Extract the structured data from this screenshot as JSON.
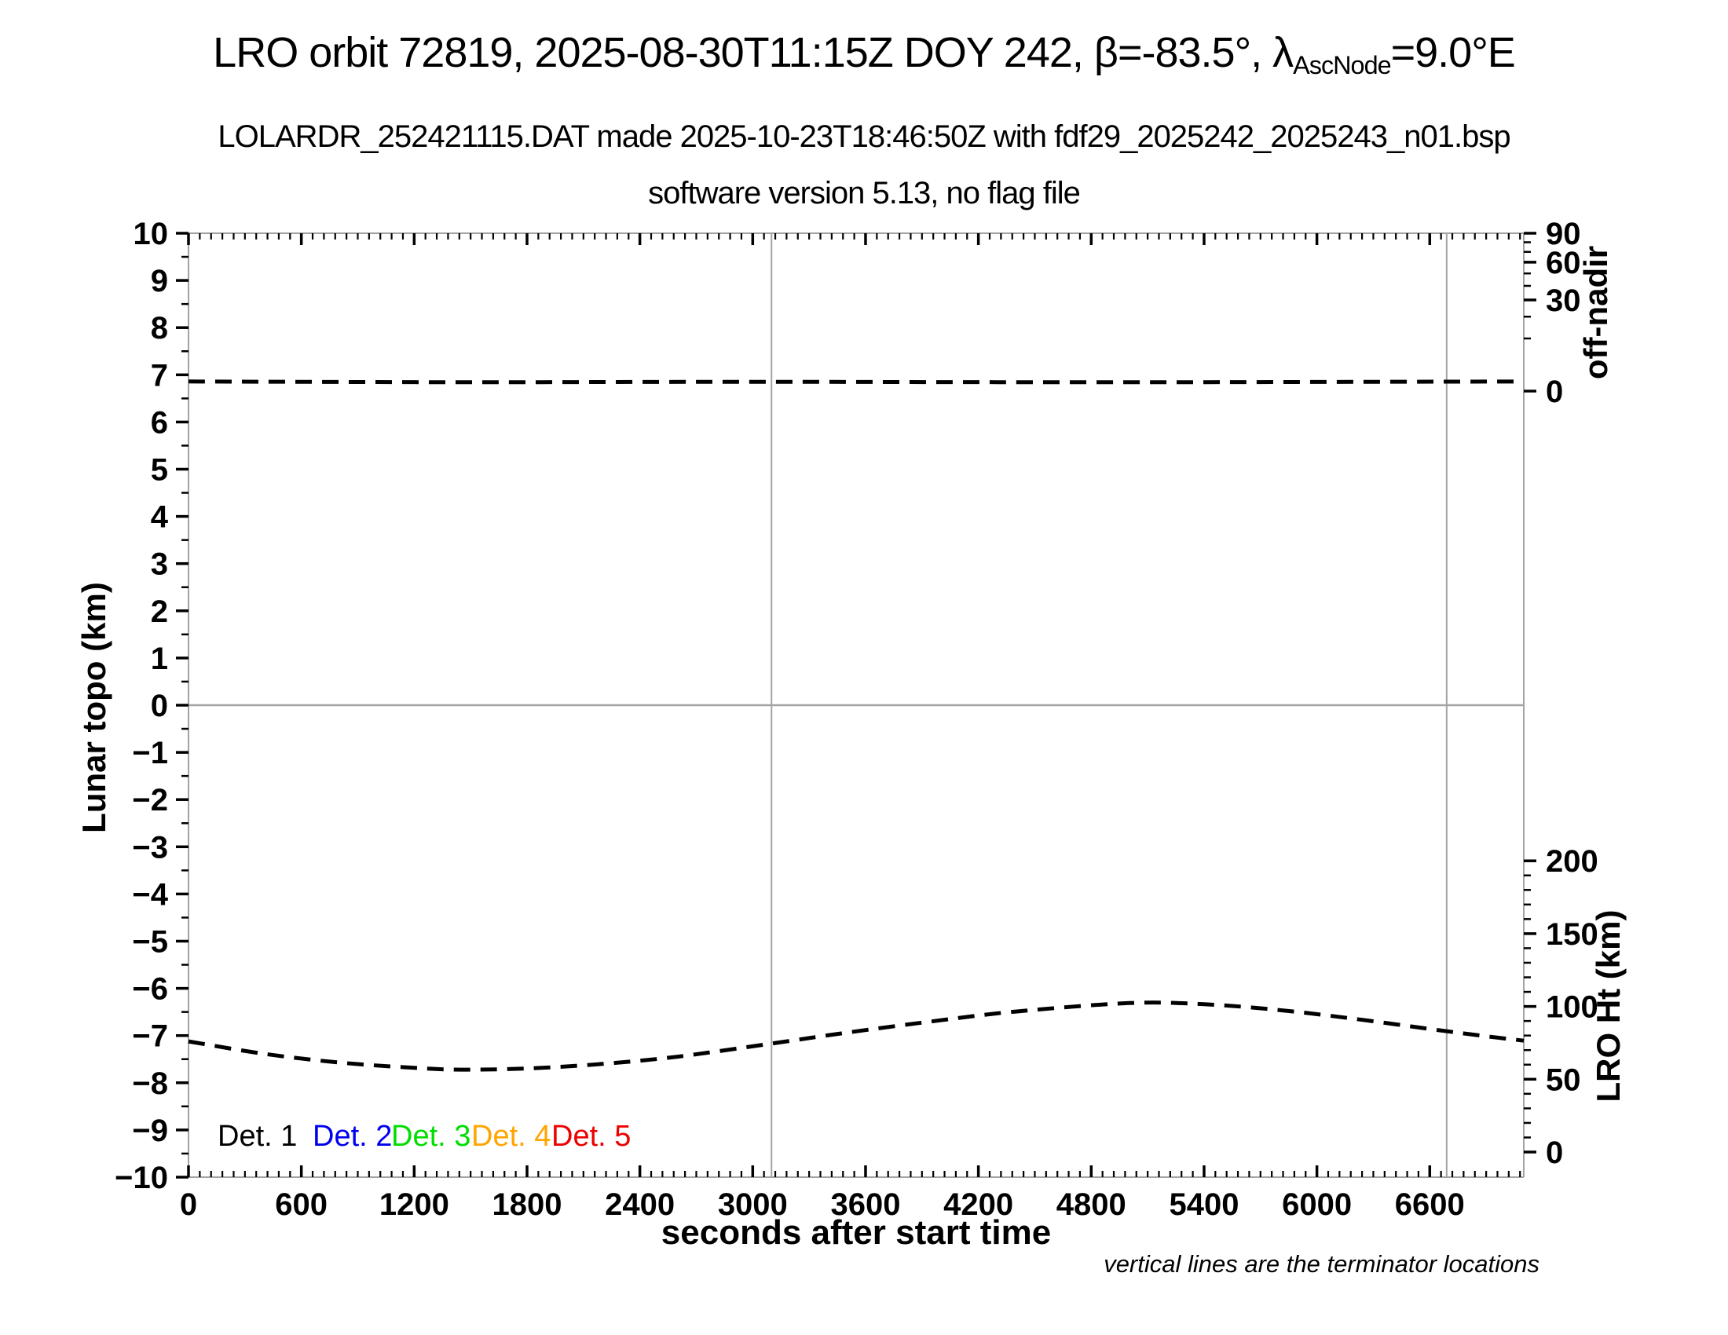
{
  "header": {
    "title_prefix": "LRO orbit 72819, 2025-08-30T11:15Z DOY 242, β=-83.5°, λ",
    "title_subscript": "AscNode",
    "title_suffix": "=9.0°E",
    "subtitle1": "LOLARDR_252421115.DAT made 2025-10-23T18:46:50Z with fdf29_2025242_2025243_n01.bsp",
    "subtitle2": "software version 5.13, no flag file"
  },
  "footer_note": "vertical lines are the terminator locations",
  "chart_data": {
    "type": "line",
    "xlabel": "seconds after start time",
    "x_range": [
      0,
      7100
    ],
    "x_major_ticks": [
      0,
      600,
      1200,
      1800,
      2400,
      3000,
      3600,
      4200,
      4800,
      5400,
      6000,
      6600
    ],
    "x_minor_step": 60,
    "left_axis": {
      "label": "Lunar topo (km)",
      "range": [
        -10,
        10
      ],
      "major_step": 1,
      "minor_step": 0.5
    },
    "right_axis_offnadir": {
      "label": "off-nadir",
      "unit": "deg",
      "scale": "sqrt",
      "major_ticks": [
        90,
        60,
        30,
        0
      ],
      "minor_ticks": [
        80,
        70,
        50,
        40,
        20,
        10
      ]
    },
    "right_axis_lro_ht": {
      "label": "LRO Ht (km)",
      "major_ticks": [
        200,
        150,
        100,
        50,
        0
      ],
      "minor_step": 10
    },
    "grid": {
      "zero_line_topo": 0,
      "terminator_lines_s": [
        3100,
        6690
      ]
    },
    "series": [
      {
        "name": "off-nadir angle",
        "axis": "offnadir",
        "style": "dashed",
        "color": "#000000",
        "points": [
          [
            0,
            0.33
          ],
          [
            800,
            0.3
          ],
          [
            1600,
            0.28
          ],
          [
            2400,
            0.3
          ],
          [
            3100,
            0.31
          ],
          [
            4000,
            0.29
          ],
          [
            5000,
            0.28
          ],
          [
            6000,
            0.3
          ],
          [
            7100,
            0.33
          ]
        ]
      },
      {
        "name": "LRO height",
        "axis": "lro_ht",
        "style": "dashed",
        "color": "#000000",
        "points": [
          [
            0,
            76
          ],
          [
            400,
            67.5
          ],
          [
            800,
            61.5
          ],
          [
            1200,
            57.8
          ],
          [
            1450,
            56.6
          ],
          [
            1800,
            57.4
          ],
          [
            2200,
            60.5
          ],
          [
            2600,
            65.5
          ],
          [
            3100,
            74.5
          ],
          [
            3500,
            82
          ],
          [
            4000,
            90.5
          ],
          [
            4400,
            96.5
          ],
          [
            5000,
            102.3
          ],
          [
            5400,
            101.5
          ],
          [
            5800,
            97.5
          ],
          [
            6200,
            91.5
          ],
          [
            6600,
            84.5
          ],
          [
            6900,
            79.5
          ],
          [
            7100,
            76.5
          ]
        ]
      }
    ],
    "legend": [
      {
        "label": "Det. 1",
        "color": "#000000"
      },
      {
        "label": "Det. 2",
        "color": "#0000ee"
      },
      {
        "label": "Det. 3",
        "color": "#00dd00"
      },
      {
        "label": "Det. 4",
        "color": "#ffa500"
      },
      {
        "label": "Det. 5",
        "color": "#ee0000"
      }
    ],
    "colors": {
      "frame": "#a3a3a3",
      "grid": "#a3a3a3",
      "curve": "#000000"
    }
  }
}
